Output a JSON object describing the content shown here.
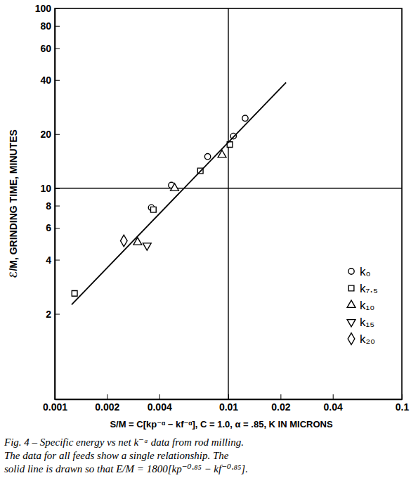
{
  "chart_data": {
    "type": "scatter",
    "log": true,
    "grid": false,
    "legend": "right",
    "ylabel": "ℰ/M, GRINDING TIME, MINUTES",
    "xlabel": "S/M = C[kp⁻ᵅ − kf⁻ᵅ], C = 1.0, α = .85, K IN MICRONS",
    "caption": [
      "Fig. 4 – Specific energy vs net k⁻ᵅ data from rod milling.",
      "The data for all feeds show a single relationship. The",
      "solid line is drawn so that E/M = 1800[kp⁻⁰·⁸⁵ − kf⁻⁰·⁸⁵]."
    ],
    "xlim": [
      0.001,
      0.1
    ],
    "ylim": [
      0.67,
      100
    ],
    "xticks": [
      0.001,
      0.002,
      0.004,
      0.01,
      0.02,
      0.04,
      0.1
    ],
    "yticks": [
      2,
      4,
      6,
      8,
      10,
      20,
      40,
      60,
      80,
      100
    ],
    "reference_lines": {
      "x": [
        0.01
      ],
      "y": [
        10
      ]
    },
    "series": [
      {
        "name": "k₀",
        "type": "scatter",
        "marker": "circle",
        "color": "#000000",
        "x": [
          0.0036,
          0.0047,
          0.0076,
          0.0107,
          0.0125
        ],
        "values": [
          7.8,
          10.4,
          15.0,
          19.5,
          24.5
        ]
      },
      {
        "name": "k₇.₅",
        "type": "scatter",
        "marker": "square",
        "color": "#000000",
        "x": [
          0.0013,
          0.0037,
          0.0069,
          0.0102
        ],
        "values": [
          2.6,
          7.6,
          12.5,
          17.5
        ]
      },
      {
        "name": "k₁₀",
        "type": "scatter",
        "marker": "triangle-up",
        "color": "#000000",
        "x": [
          0.003,
          0.0049,
          0.0092
        ],
        "values": [
          5.0,
          10.0,
          15.3
        ]
      },
      {
        "name": "k₁₅",
        "type": "scatter",
        "marker": "triangle-down",
        "color": "#000000",
        "x": [
          0.0034
        ],
        "values": [
          4.8
        ]
      },
      {
        "name": "k₂₀",
        "type": "scatter",
        "marker": "diamond",
        "color": "#000000",
        "x": [
          0.0025
        ],
        "values": [
          5.1
        ]
      },
      {
        "type": "line",
        "line_style": "solid",
        "color": "#000000",
        "x": [
          0.00125,
          0.0215
        ],
        "values": [
          2.25,
          38.7
        ]
      }
    ]
  }
}
